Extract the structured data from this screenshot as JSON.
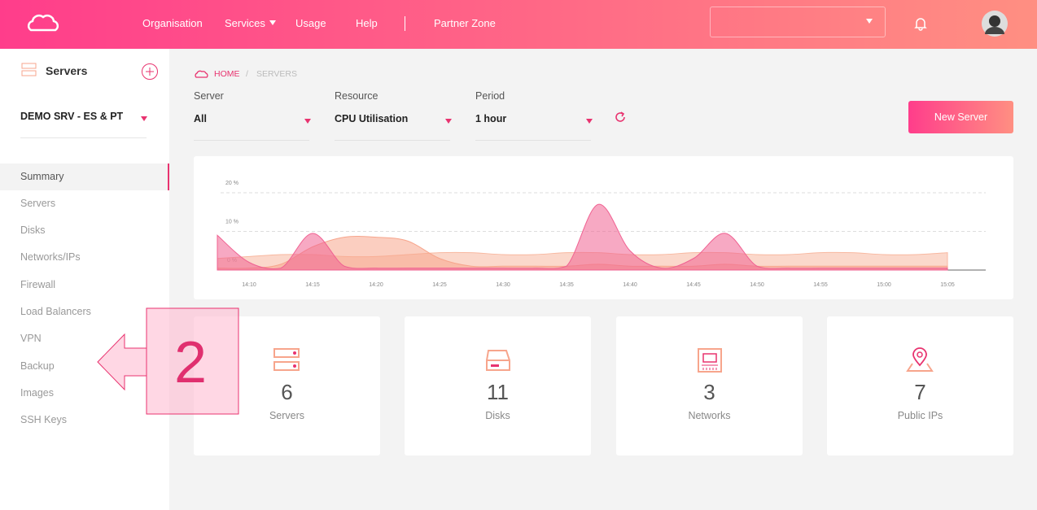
{
  "header": {
    "nav": [
      "Organisation",
      "Services",
      "Usage",
      "Help",
      "Partner Zone"
    ]
  },
  "sidebar": {
    "title": "Servers",
    "project": "DEMO SRV - ES & PT",
    "menu": [
      "Summary",
      "Servers",
      "Disks",
      "Networks/IPs",
      "Firewall",
      "Load Balancers",
      "VPN",
      "Backup",
      "Images",
      "SSH Keys"
    ]
  },
  "breadcrumb": [
    "HOME",
    "SERVERS"
  ],
  "filters": [
    {
      "label": "Server",
      "value": "All"
    },
    {
      "label": "Resource",
      "value": "CPU Utilisation"
    },
    {
      "label": "Period",
      "value": "1 hour"
    }
  ],
  "button": "New Server",
  "chart": {
    "type": "area",
    "categories": [
      null,
      "14:10",
      null,
      "14:15",
      null,
      "14:20",
      null,
      "14:25",
      null,
      "14:30",
      null,
      "14:35",
      null,
      "14:40",
      null,
      "14:45",
      null,
      "14:50",
      null,
      "14:55",
      null,
      "15:00",
      null,
      "15:05",
      null
    ],
    "ylim": [
      0,
      22
    ],
    "yticks": [
      {
        "value": 0,
        "label": "0 %"
      },
      {
        "value": 10,
        "label": "10 %"
      },
      {
        "value": 20,
        "label": "20 %"
      }
    ],
    "series": [
      {
        "color": "#f8b8a0",
        "values": [
          3,
          3.5,
          4,
          4,
          3.5,
          3.5,
          4,
          4.5,
          4.5,
          4,
          4,
          4.5,
          4.5,
          4,
          4,
          4.5,
          4.5,
          4,
          4,
          4.5,
          4.5,
          4,
          4,
          4.5,
          null
        ]
      },
      {
        "color": "#f7a58c",
        "values": [
          0.5,
          0.5,
          1.5,
          6,
          8.5,
          8.5,
          7.5,
          3,
          1,
          1,
          1,
          1,
          1.5,
          1,
          1,
          1,
          1.5,
          1,
          1,
          1,
          1,
          1,
          1,
          1,
          null
        ]
      },
      {
        "color": "#f06292",
        "values": [
          9,
          2,
          0.5,
          9.5,
          1,
          0.5,
          0.5,
          0.5,
          0.5,
          0.5,
          0.5,
          1,
          17,
          5,
          0.5,
          3,
          9.5,
          1,
          0.5,
          0.5,
          0.5,
          0.5,
          0.5,
          0.5,
          null
        ]
      }
    ]
  },
  "stats": [
    {
      "value": 6,
      "label": "Servers"
    },
    {
      "value": 11,
      "label": "Disks"
    },
    {
      "value": 3,
      "label": "Networks"
    },
    {
      "value": 7,
      "label": "Public IPs"
    }
  ],
  "annotation": "2"
}
